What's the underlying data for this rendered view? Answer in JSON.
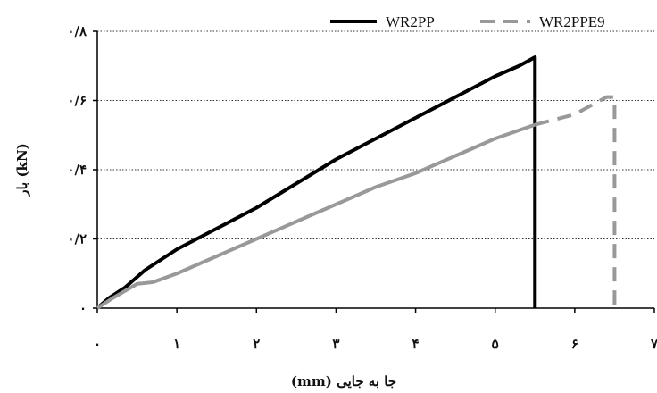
{
  "chart_data": {
    "type": "line",
    "xlabel": "جا به جایی (mm)",
    "ylabel": "بار (kN)",
    "xlim": [
      0,
      7
    ],
    "ylim": [
      0,
      0.8
    ],
    "x_ticks": [
      0,
      1,
      2,
      3,
      4,
      5,
      6,
      7
    ],
    "x_tick_labels": [
      "۰",
      "۱",
      "۲",
      "۳",
      "۴",
      "۵",
      "۶",
      "۷"
    ],
    "y_ticks": [
      0,
      0.2,
      0.4,
      0.6,
      0.8
    ],
    "y_tick_labels": [
      "۰",
      "۰/۲",
      "۰/۴",
      "۰/۶",
      "۰/۸"
    ],
    "grid": "horizontal-dotted",
    "legend_position": "top-right",
    "series": [
      {
        "name": "WR2PP",
        "color": "#000000",
        "style": "solid",
        "x": [
          0,
          0.15,
          0.35,
          0.6,
          1.0,
          1.5,
          2.0,
          2.5,
          3.0,
          3.5,
          4.0,
          4.5,
          5.0,
          5.3,
          5.5,
          5.5
        ],
        "y": [
          0,
          0.03,
          0.06,
          0.11,
          0.17,
          0.23,
          0.29,
          0.36,
          0.43,
          0.49,
          0.55,
          0.61,
          0.67,
          0.7,
          0.725,
          0
        ]
      },
      {
        "name": "WR2PPE9",
        "color": "#999999",
        "style": "solid-then-dashed",
        "dashed_from_index": 13,
        "x": [
          0,
          0.2,
          0.5,
          0.7,
          1.0,
          1.5,
          2.0,
          2.5,
          3.0,
          3.5,
          4.0,
          4.5,
          5.0,
          5.5,
          6.0,
          6.4,
          6.5,
          6.5
        ],
        "y": [
          0,
          0.03,
          0.07,
          0.075,
          0.1,
          0.15,
          0.2,
          0.25,
          0.3,
          0.35,
          0.39,
          0.44,
          0.49,
          0.53,
          0.56,
          0.61,
          0.61,
          0
        ]
      }
    ]
  }
}
